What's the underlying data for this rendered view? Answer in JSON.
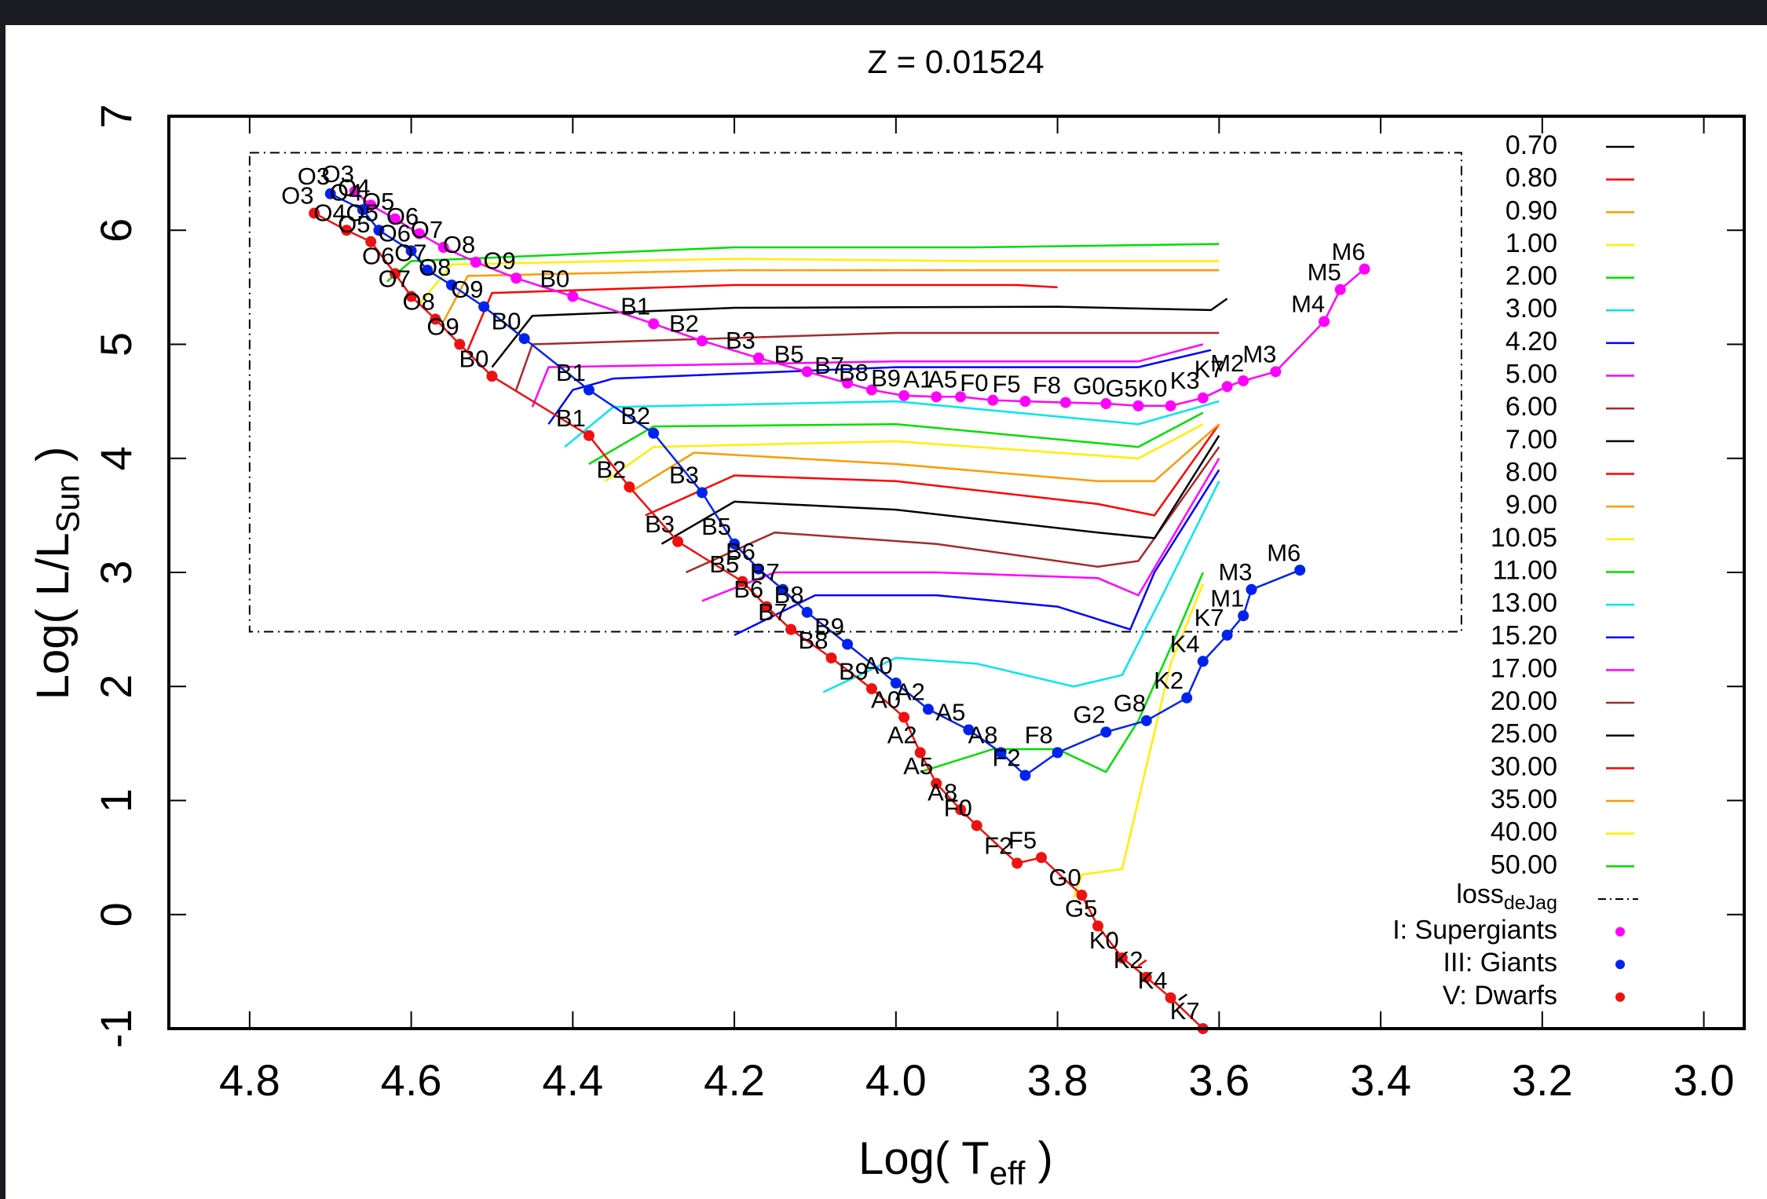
{
  "chart_data": {
    "type": "line",
    "title": "Z = 0.01524",
    "xlabel": {
      "main": "Log( T",
      "sub": "eff",
      "end": " )"
    },
    "ylabel": {
      "main": "Log( L/L",
      "sub": "Sun",
      "end": " )"
    },
    "xlim": [
      4.9,
      2.95
    ],
    "ylim": [
      -1,
      7
    ],
    "xticks": [
      4.8,
      4.6,
      4.4,
      4.2,
      {
        "value": 4,
        "label": "4.0"
      },
      3.8,
      3.6,
      3.4,
      3.2,
      {
        "value": 3,
        "label": "3.0"
      }
    ],
    "yticks": [
      -1,
      0,
      1,
      2,
      3,
      4,
      5,
      6,
      7
    ],
    "loss_box": {
      "x": [
        4.8,
        3.3
      ],
      "y": [
        2.48,
        6.68
      ]
    },
    "loss_label": {
      "main": "loss",
      "sub": "deJag"
    },
    "series": [
      {
        "name": "0.70",
        "color": "#000000",
        "x": [
          3.65,
          3.64
        ],
        "values": [
          -0.75,
          -0.7
        ]
      },
      {
        "name": "0.80",
        "color": "#ff0000",
        "x": [
          3.7,
          3.69
        ],
        "values": [
          -0.45,
          -0.4
        ]
      },
      {
        "name": "0.90",
        "color": "#ff9900",
        "x": [
          3.74,
          3.73
        ],
        "values": [
          -0.2,
          -0.15
        ]
      },
      {
        "name": "1.00",
        "color": "#ffee00",
        "x": [
          3.78,
          3.77,
          3.72,
          3.7,
          3.66,
          3.62
        ],
        "values": [
          0.15,
          0.35,
          0.4,
          1.0,
          2.2,
          2.9
        ]
      },
      {
        "name": "2.00",
        "color": "#00dd00",
        "x": [
          3.97,
          3.88,
          3.8,
          3.74,
          3.7,
          3.65,
          3.62
        ],
        "values": [
          1.25,
          1.45,
          1.45,
          1.25,
          1.7,
          2.5,
          3.0
        ]
      },
      {
        "name": "3.00",
        "color": "#00e5ee",
        "x": [
          4.09,
          4.0,
          3.9,
          3.78,
          3.72,
          3.67,
          3.6
        ],
        "values": [
          1.95,
          2.25,
          2.2,
          2.0,
          2.1,
          2.8,
          3.8
        ]
      },
      {
        "name": "4.20",
        "color": "#0000ff",
        "x": [
          4.2,
          4.1,
          3.95,
          3.8,
          3.71,
          3.68,
          3.6
        ],
        "values": [
          2.45,
          2.8,
          2.8,
          2.7,
          2.5,
          3.0,
          3.9
        ]
      },
      {
        "name": "5.00",
        "color": "#ff00ff",
        "x": [
          4.24,
          4.15,
          3.95,
          3.75,
          3.7,
          3.6
        ],
        "values": [
          2.75,
          3.0,
          3.0,
          2.95,
          2.8,
          4.0
        ]
      },
      {
        "name": "6.00",
        "color": "#a52a2a",
        "x": [
          4.26,
          4.15,
          3.95,
          3.75,
          3.7,
          3.6
        ],
        "values": [
          3.0,
          3.35,
          3.25,
          3.05,
          3.1,
          4.1
        ]
      },
      {
        "name": "7.00",
        "color": "#000000",
        "x": [
          4.29,
          4.2,
          4.0,
          3.75,
          3.68,
          3.6
        ],
        "values": [
          3.25,
          3.62,
          3.55,
          3.35,
          3.3,
          4.2
        ]
      },
      {
        "name": "8.00",
        "color": "#ff0000",
        "x": [
          4.31,
          4.2,
          4.0,
          3.75,
          3.68,
          3.6
        ],
        "values": [
          3.5,
          3.85,
          3.8,
          3.6,
          3.5,
          4.3
        ]
      },
      {
        "name": "9.00",
        "color": "#ff9900",
        "x": [
          4.33,
          4.25,
          4.0,
          3.75,
          3.68,
          3.6
        ],
        "values": [
          3.7,
          4.05,
          3.95,
          3.8,
          3.8,
          4.3
        ]
      },
      {
        "name": "10.05",
        "color": "#ffee00",
        "x": [
          4.36,
          4.3,
          4.0,
          3.7,
          3.62
        ],
        "values": [
          3.8,
          4.1,
          4.15,
          4.0,
          4.3
        ]
      },
      {
        "name": "11.00",
        "color": "#00dd00",
        "x": [
          4.38,
          4.3,
          4.0,
          3.7,
          3.62
        ],
        "values": [
          3.95,
          4.28,
          4.3,
          4.1,
          4.4
        ]
      },
      {
        "name": "13.00",
        "color": "#00e5ee",
        "x": [
          4.41,
          4.35,
          4.0,
          3.7,
          3.6
        ],
        "values": [
          4.1,
          4.45,
          4.5,
          4.3,
          4.5
        ]
      },
      {
        "name": "15.20",
        "color": "#0000ff",
        "x": [
          4.43,
          4.4,
          4.35,
          4.0,
          3.7,
          3.61
        ],
        "values": [
          4.3,
          4.6,
          4.7,
          4.8,
          4.8,
          4.95
        ]
      },
      {
        "name": "17.00",
        "color": "#ff00ff",
        "x": [
          4.45,
          4.43,
          4.0,
          3.7,
          3.62
        ],
        "values": [
          4.45,
          4.8,
          4.85,
          4.85,
          5.0
        ]
      },
      {
        "name": "20.00",
        "color": "#a52a2a",
        "x": [
          4.47,
          4.45,
          4.0,
          3.7,
          3.6
        ],
        "values": [
          4.6,
          5.0,
          5.1,
          5.1,
          5.1
        ]
      },
      {
        "name": "25.00",
        "color": "#000000",
        "x": [
          4.5,
          4.45,
          4.2,
          3.8,
          3.61,
          3.59
        ],
        "values": [
          4.8,
          5.25,
          5.32,
          5.33,
          5.3,
          5.4
        ]
      },
      {
        "name": "30.00",
        "color": "#ff0000",
        "x": [
          4.53,
          4.5,
          4.2,
          3.85,
          3.8
        ],
        "values": [
          4.95,
          5.45,
          5.52,
          5.52,
          5.5
        ]
      },
      {
        "name": "35.00",
        "color": "#ff9900",
        "x": [
          4.56,
          4.53,
          4.2,
          3.9,
          3.6
        ],
        "values": [
          5.2,
          5.6,
          5.65,
          5.65,
          5.65
        ]
      },
      {
        "name": "40.00",
        "color": "#ffee00",
        "x": [
          4.59,
          4.55,
          4.2,
          3.9,
          3.6
        ],
        "values": [
          5.35,
          5.7,
          5.75,
          5.73,
          5.73
        ]
      },
      {
        "name": "50.00",
        "color": "#00dd00",
        "x": [
          4.63,
          4.6,
          4.2,
          3.9,
          3.6
        ],
        "values": [
          5.55,
          5.73,
          5.85,
          5.85,
          5.88
        ]
      }
    ],
    "sequences": [
      {
        "name": "I: Supergiants",
        "color": "#ff00ff",
        "labels": [
          "O3",
          "O4",
          "O5",
          "O6",
          "O7",
          "O8",
          "O9",
          "B0",
          "B1",
          "B2",
          "B3",
          "B5",
          "B7",
          "B8",
          "B9",
          "A1",
          "A5",
          "F0",
          "F5",
          "F8",
          "G0",
          "G5",
          "K0",
          "K3",
          "K7",
          "M2",
          "M3",
          "M4",
          "M5",
          "M6"
        ],
        "x": [
          4.67,
          4.65,
          4.62,
          4.59,
          4.56,
          4.52,
          4.47,
          4.4,
          4.3,
          4.24,
          4.17,
          4.11,
          4.06,
          4.03,
          3.99,
          3.95,
          3.92,
          3.88,
          3.84,
          3.79,
          3.74,
          3.7,
          3.66,
          3.62,
          3.59,
          3.57,
          3.53,
          3.47,
          3.45,
          3.42
        ],
        "values": [
          6.34,
          6.22,
          6.1,
          5.97,
          5.85,
          5.72,
          5.58,
          5.42,
          5.18,
          5.03,
          4.88,
          4.76,
          4.66,
          4.6,
          4.55,
          4.54,
          4.54,
          4.51,
          4.5,
          4.49,
          4.48,
          4.46,
          4.46,
          4.53,
          4.63,
          4.68,
          4.76,
          5.2,
          5.48,
          5.66
        ]
      },
      {
        "name": "III: Giants",
        "color": "#0022ee",
        "labels": [
          "O3",
          "O4",
          "O5",
          "O6",
          "O7",
          "O8",
          "O9",
          "B0",
          "B1",
          "B2",
          "B3",
          "B5",
          "B6",
          "B7",
          "B8",
          "B9",
          "A0",
          "A2",
          "A5",
          "A8",
          "F2",
          "F8",
          "G2",
          "G8",
          "K2",
          "K4",
          "K7",
          "M1",
          "M3",
          "M6"
        ],
        "x": [
          4.7,
          4.66,
          4.64,
          4.6,
          4.58,
          4.55,
          4.51,
          4.46,
          4.38,
          4.3,
          4.24,
          4.2,
          4.17,
          4.14,
          4.11,
          4.06,
          4.0,
          3.96,
          3.91,
          3.87,
          3.84,
          3.8,
          3.74,
          3.69,
          3.64,
          3.62,
          3.59,
          3.57,
          3.56,
          3.5
        ],
        "values": [
          6.32,
          6.18,
          6.0,
          5.82,
          5.65,
          5.52,
          5.33,
          5.05,
          4.6,
          4.22,
          3.7,
          3.25,
          3.03,
          2.85,
          2.65,
          2.37,
          2.03,
          1.8,
          1.62,
          1.42,
          1.22,
          1.42,
          1.6,
          1.7,
          1.9,
          2.22,
          2.45,
          2.62,
          2.85,
          3.02
        ]
      },
      {
        "name": "V: Dwarfs",
        "color": "#ee1111",
        "labels": [
          "O3",
          "O4",
          "O5",
          "O6",
          "O7",
          "O8",
          "O9",
          "B0",
          "B1",
          "B2",
          "B3",
          "B5",
          "B6",
          "B7",
          "B8",
          "B9",
          "A0",
          "A2",
          "A5",
          "A8",
          "F0",
          "F2",
          "F5",
          "G0",
          "G5",
          "K0",
          "K2",
          "K4",
          "K7"
        ],
        "x": [
          4.72,
          4.68,
          4.65,
          4.62,
          4.6,
          4.57,
          4.54,
          4.5,
          4.38,
          4.33,
          4.27,
          4.19,
          4.16,
          4.13,
          4.08,
          4.03,
          3.99,
          3.97,
          3.95,
          3.92,
          3.9,
          3.85,
          3.82,
          3.77,
          3.75,
          3.72,
          3.69,
          3.66,
          3.62
        ],
        "values": [
          6.15,
          6.0,
          5.9,
          5.62,
          5.42,
          5.22,
          5.0,
          4.72,
          4.2,
          3.75,
          3.27,
          2.92,
          2.7,
          2.5,
          2.25,
          1.98,
          1.73,
          1.42,
          1.15,
          0.92,
          0.78,
          0.45,
          0.5,
          0.17,
          -0.1,
          -0.38,
          -0.55,
          -0.73,
          -1.0
        ]
      }
    ]
  }
}
